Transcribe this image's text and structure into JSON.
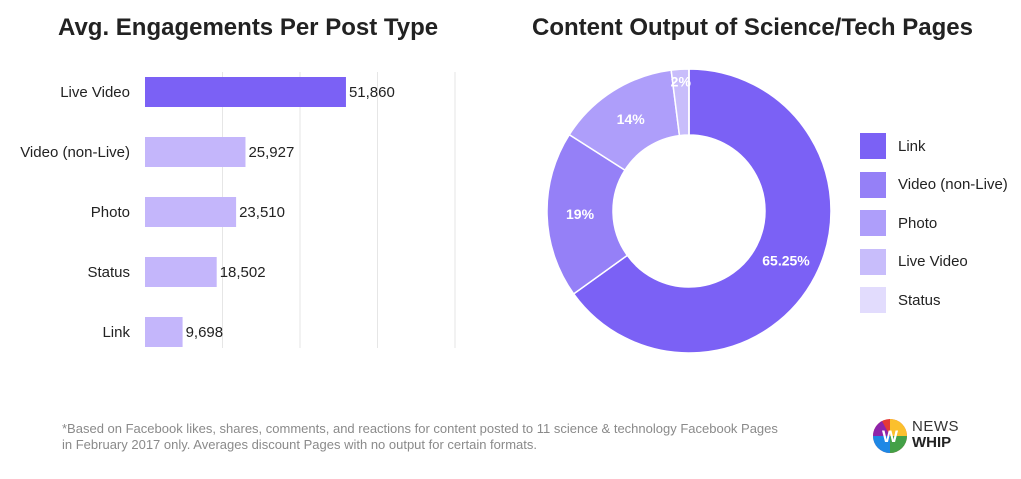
{
  "chart_data": [
    {
      "type": "bar",
      "orientation": "horizontal",
      "title": "Avg. Engagements Per Post Type",
      "categories": [
        "Live Video",
        "Video (non-Live)",
        "Photo",
        "Status",
        "Link"
      ],
      "values": [
        51860,
        25927,
        23510,
        18502,
        9698
      ],
      "value_labels": [
        "51,860",
        "25,927",
        "23,510",
        "18,502",
        "9,698"
      ],
      "xlim": [
        0,
        80000
      ],
      "grid": true,
      "colors": [
        "#7b61f5",
        "#c4b6fb",
        "#c4b6fb",
        "#c4b6fb",
        "#c4b6fb"
      ]
    },
    {
      "type": "pie",
      "donut": true,
      "title": "Content Output of Science/Tech Pages",
      "slices": [
        {
          "label": "Link",
          "value": 65.25,
          "display": "65.25%",
          "color": "#7b61f5"
        },
        {
          "label": "Video (non-Live)",
          "value": 19,
          "display": "19%",
          "color": "#9580f7"
        },
        {
          "label": "Photo",
          "value": 14,
          "display": "14%",
          "color": "#ae9efa"
        },
        {
          "label": "Live Video",
          "value": 2,
          "display": "2%",
          "color": "#c8bdfb"
        },
        {
          "label": "Status",
          "value": 0.01,
          "display": "",
          "color": "#e2dcfd"
        }
      ],
      "legend": [
        {
          "label": "Link",
          "color": "#7b61f5"
        },
        {
          "label": "Video (non-Live)",
          "color": "#9580f7"
        },
        {
          "label": "Photo",
          "color": "#ae9efa"
        },
        {
          "label": "Live Video",
          "color": "#c8bdfb"
        },
        {
          "label": "Status",
          "color": "#e2dcfd"
        }
      ],
      "legend_position": "right"
    }
  ],
  "footnote": "*Based on Facebook likes, shares, comments, and reactions for content posted to 11 science & technology Facebook Pages in February 2017 only. Averages discount Pages with no output for certain formats.",
  "logo": {
    "line1": "NEWS",
    "line2": "WHIP"
  }
}
